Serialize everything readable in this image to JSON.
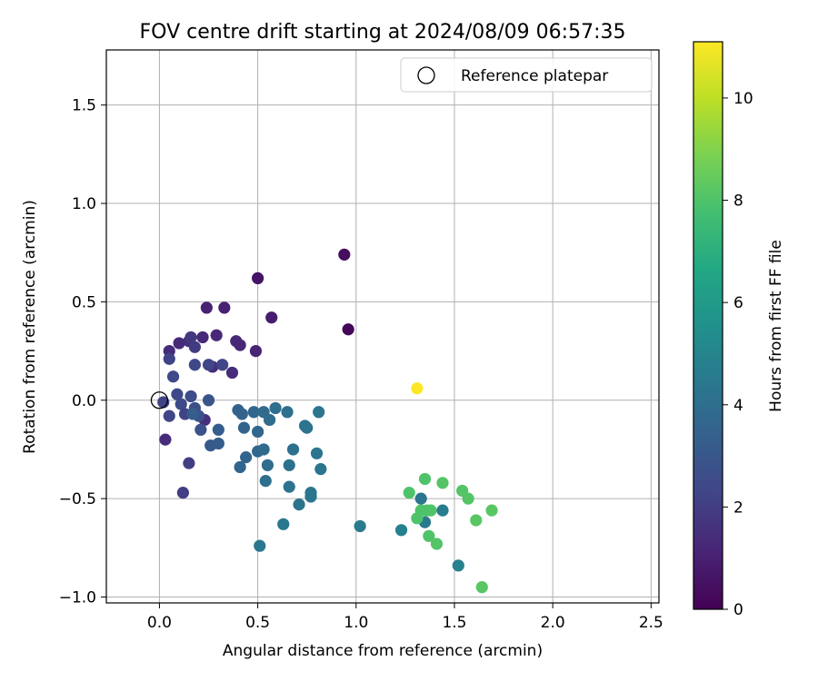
{
  "chart_data": {
    "type": "scatter",
    "title": "FOV centre drift starting at 2024/08/09 06:57:35",
    "xlabel": "Angular distance from reference (arcmin)",
    "ylabel": "Rotation from reference (arcmin)",
    "xlim": [
      -0.27,
      2.54
    ],
    "ylim": [
      -1.03,
      1.78
    ],
    "x_ticks": [
      0.0,
      0.5,
      1.0,
      1.5,
      2.0,
      2.5
    ],
    "x_tick_labels": [
      "0.0",
      "0.5",
      "1.0",
      "1.5",
      "2.0",
      "2.5"
    ],
    "y_ticks": [
      -1.0,
      -0.5,
      0.0,
      0.5,
      1.0,
      1.5
    ],
    "y_tick_labels": [
      "−1.0",
      "−0.5",
      "0.0",
      "0.5",
      "1.0",
      "1.5"
    ],
    "grid": true,
    "legend": {
      "position": "top-right",
      "entries": [
        "Reference platepar"
      ]
    },
    "colorbar": {
      "label": "Hours from first FF file",
      "range": [
        0,
        11.1
      ],
      "ticks": [
        0,
        2,
        4,
        6,
        8,
        10
      ],
      "tick_labels": [
        "0",
        "2",
        "4",
        "6",
        "8",
        "10"
      ],
      "colormap": "viridis"
    },
    "reference_point": {
      "x": 0.0,
      "y": 0.0
    },
    "points": [
      {
        "x": 0.94,
        "y": 0.74,
        "c": 0.4
      },
      {
        "x": 0.96,
        "y": 0.36,
        "c": 0.2
      },
      {
        "x": 0.5,
        "y": 0.62,
        "c": 0.6
      },
      {
        "x": 0.57,
        "y": 0.42,
        "c": 0.9
      },
      {
        "x": 0.24,
        "y": 0.47,
        "c": 1.0
      },
      {
        "x": 0.33,
        "y": 0.47,
        "c": 1.0
      },
      {
        "x": 0.49,
        "y": 0.25,
        "c": 1.1
      },
      {
        "x": 0.39,
        "y": 0.3,
        "c": 1.2
      },
      {
        "x": 0.41,
        "y": 0.28,
        "c": 1.2
      },
      {
        "x": 0.29,
        "y": 0.33,
        "c": 1.3
      },
      {
        "x": 0.22,
        "y": 0.32,
        "c": 1.3
      },
      {
        "x": 0.1,
        "y": 0.29,
        "c": 1.3
      },
      {
        "x": 0.05,
        "y": 0.25,
        "c": 1.4
      },
      {
        "x": 0.37,
        "y": 0.14,
        "c": 1.4
      },
      {
        "x": 0.27,
        "y": 0.17,
        "c": 1.5
      },
      {
        "x": 0.15,
        "y": 0.3,
        "c": 1.5
      },
      {
        "x": 0.03,
        "y": -0.2,
        "c": 1.4
      },
      {
        "x": 0.23,
        "y": -0.1,
        "c": 1.5
      },
      {
        "x": 0.16,
        "y": 0.32,
        "c": 1.8
      },
      {
        "x": 0.18,
        "y": 0.27,
        "c": 1.9
      },
      {
        "x": 0.05,
        "y": 0.21,
        "c": 2.2
      },
      {
        "x": 0.25,
        "y": 0.18,
        "c": 2.3
      },
      {
        "x": 0.32,
        "y": 0.18,
        "c": 2.3
      },
      {
        "x": 0.18,
        "y": 0.18,
        "c": 2.4
      },
      {
        "x": 0.07,
        "y": 0.12,
        "c": 2.4
      },
      {
        "x": 0.15,
        "y": -0.32,
        "c": 2.0
      },
      {
        "x": 0.12,
        "y": -0.47,
        "c": 2.0
      },
      {
        "x": 0.02,
        "y": -0.01,
        "c": 2.2
      },
      {
        "x": 0.05,
        "y": -0.08,
        "c": 2.3
      },
      {
        "x": 0.09,
        "y": 0.03,
        "c": 2.4
      },
      {
        "x": 0.11,
        "y": -0.02,
        "c": 2.5
      },
      {
        "x": 0.13,
        "y": -0.07,
        "c": 2.2
      },
      {
        "x": 0.16,
        "y": 0.02,
        "c": 2.6
      },
      {
        "x": 0.18,
        "y": -0.04,
        "c": 2.6
      },
      {
        "x": 0.2,
        "y": -0.08,
        "c": 2.7
      },
      {
        "x": 0.21,
        "y": -0.15,
        "c": 2.8
      },
      {
        "x": 0.25,
        "y": 0.0,
        "c": 2.9
      },
      {
        "x": 0.26,
        "y": -0.23,
        "c": 3.1
      },
      {
        "x": 0.3,
        "y": -0.22,
        "c": 3.2
      },
      {
        "x": 0.3,
        "y": -0.15,
        "c": 3.3
      },
      {
        "x": 0.17,
        "y": -0.07,
        "c": 3.3
      },
      {
        "x": 0.4,
        "y": -0.05,
        "c": 3.5
      },
      {
        "x": 0.42,
        "y": -0.07,
        "c": 3.5
      },
      {
        "x": 0.43,
        "y": -0.14,
        "c": 3.5
      },
      {
        "x": 0.44,
        "y": -0.29,
        "c": 3.6
      },
      {
        "x": 0.41,
        "y": -0.34,
        "c": 3.6
      },
      {
        "x": 0.48,
        "y": -0.06,
        "c": 3.7
      },
      {
        "x": 0.5,
        "y": -0.16,
        "c": 3.7
      },
      {
        "x": 0.5,
        "y": -0.26,
        "c": 3.7
      },
      {
        "x": 0.53,
        "y": -0.25,
        "c": 3.8
      },
      {
        "x": 0.53,
        "y": -0.06,
        "c": 3.8
      },
      {
        "x": 0.56,
        "y": -0.1,
        "c": 3.9
      },
      {
        "x": 0.55,
        "y": -0.33,
        "c": 3.9
      },
      {
        "x": 0.54,
        "y": -0.41,
        "c": 4.0
      },
      {
        "x": 0.59,
        "y": -0.04,
        "c": 4.0
      },
      {
        "x": 0.65,
        "y": -0.06,
        "c": 4.1
      },
      {
        "x": 0.68,
        "y": -0.25,
        "c": 4.1
      },
      {
        "x": 0.66,
        "y": -0.33,
        "c": 4.1
      },
      {
        "x": 0.66,
        "y": -0.44,
        "c": 4.2
      },
      {
        "x": 0.71,
        "y": -0.53,
        "c": 4.2
      },
      {
        "x": 0.74,
        "y": -0.13,
        "c": 4.2
      },
      {
        "x": 0.75,
        "y": -0.14,
        "c": 4.2
      },
      {
        "x": 0.77,
        "y": -0.47,
        "c": 4.3
      },
      {
        "x": 0.77,
        "y": -0.49,
        "c": 4.3
      },
      {
        "x": 0.8,
        "y": -0.27,
        "c": 4.3
      },
      {
        "x": 0.81,
        "y": -0.06,
        "c": 4.3
      },
      {
        "x": 0.82,
        "y": -0.35,
        "c": 4.3
      },
      {
        "x": 0.63,
        "y": -0.63,
        "c": 4.4
      },
      {
        "x": 0.51,
        "y": -0.74,
        "c": 4.4
      },
      {
        "x": 1.02,
        "y": -0.64,
        "c": 4.6
      },
      {
        "x": 1.23,
        "y": -0.66,
        "c": 4.8
      },
      {
        "x": 1.33,
        "y": -0.5,
        "c": 4.3
      },
      {
        "x": 1.35,
        "y": -0.62,
        "c": 4.5
      },
      {
        "x": 1.44,
        "y": -0.56,
        "c": 4.6
      },
      {
        "x": 1.52,
        "y": -0.84,
        "c": 4.8
      },
      {
        "x": 1.31,
        "y": 0.06,
        "c": 11.1
      },
      {
        "x": 1.27,
        "y": -0.47,
        "c": 8.0
      },
      {
        "x": 1.31,
        "y": -0.6,
        "c": 8.0
      },
      {
        "x": 1.33,
        "y": -0.56,
        "c": 8.0
      },
      {
        "x": 1.35,
        "y": -0.4,
        "c": 8.0
      },
      {
        "x": 1.36,
        "y": -0.56,
        "c": 8.0
      },
      {
        "x": 1.38,
        "y": -0.56,
        "c": 8.0
      },
      {
        "x": 1.37,
        "y": -0.69,
        "c": 8.0
      },
      {
        "x": 1.41,
        "y": -0.73,
        "c": 8.1
      },
      {
        "x": 1.44,
        "y": -0.42,
        "c": 8.1
      },
      {
        "x": 1.54,
        "y": -0.46,
        "c": 8.1
      },
      {
        "x": 1.57,
        "y": -0.5,
        "c": 8.1
      },
      {
        "x": 1.61,
        "y": -0.61,
        "c": 8.2
      },
      {
        "x": 1.64,
        "y": -0.95,
        "c": 8.2
      },
      {
        "x": 1.69,
        "y": -0.56,
        "c": 8.2
      }
    ]
  }
}
